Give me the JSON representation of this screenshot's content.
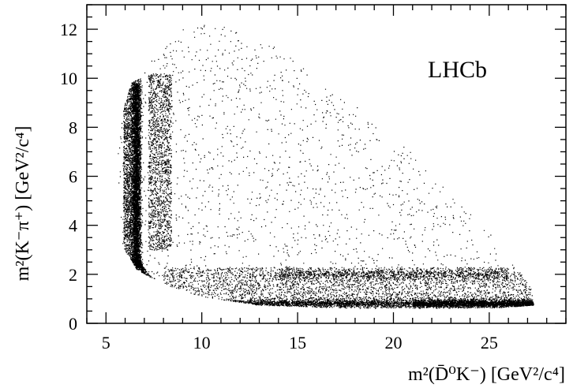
{
  "chart_data": {
    "type": "scatter",
    "title": "",
    "xlabel": "m²(D̄⁰K⁻) [GeV²/c⁴]",
    "ylabel": "m²(K⁻π⁺) [GeV²/c⁴]",
    "annotation": "LHCb",
    "xlim": [
      4,
      29
    ],
    "ylim": [
      0,
      13
    ],
    "x_ticks": [
      5,
      10,
      15,
      20,
      25
    ],
    "y_ticks": [
      0,
      2,
      4,
      6,
      8,
      10,
      12
    ],
    "x_tick_labels": [
      "5",
      "10",
      "15",
      "20",
      "25"
    ],
    "y_tick_labels": [
      "0",
      "2",
      "4",
      "6",
      "8",
      "10",
      "12"
    ],
    "grid": false,
    "marker_color": "#000000",
    "description_regions": {
      "boundary_vertices": [
        [
          5.6,
          6.0
        ],
        [
          5.8,
          3.2
        ],
        [
          6.6,
          2.2
        ],
        [
          8.0,
          1.6
        ],
        [
          10,
          1.1
        ],
        [
          13,
          0.75
        ],
        [
          18,
          0.62
        ],
        [
          22,
          0.62
        ],
        [
          25.5,
          0.65
        ],
        [
          27.3,
          0.75
        ],
        [
          27.2,
          1.4
        ],
        [
          25.5,
          3.3
        ],
        [
          22,
          6.2
        ],
        [
          18,
          9.0
        ],
        [
          14,
          11.2
        ],
        [
          11.5,
          12.1
        ],
        [
          10,
          12.3
        ],
        [
          9.0,
          12.1
        ],
        [
          8.2,
          11.5
        ],
        [
          7.2,
          10.6
        ],
        [
          6.3,
          9.8
        ],
        [
          5.8,
          8.5
        ],
        [
          5.6,
          7.0
        ]
      ]
    }
  }
}
